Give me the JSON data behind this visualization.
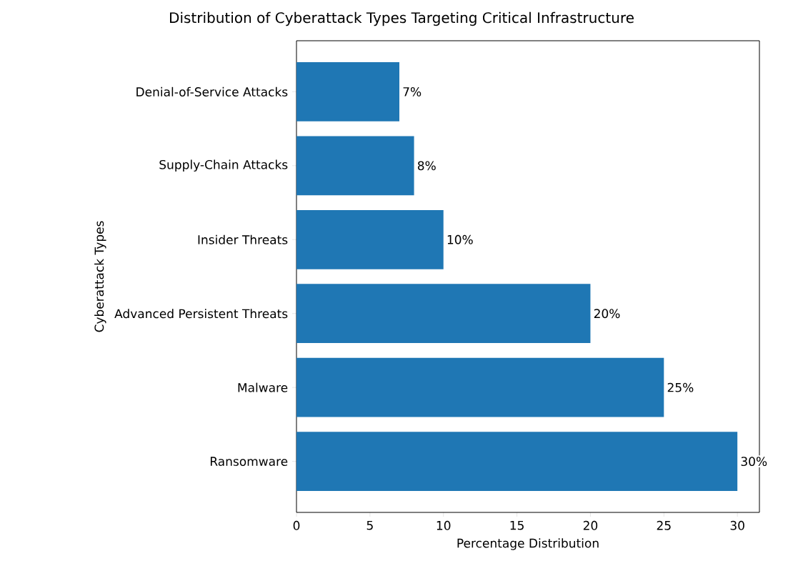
{
  "chart_data": {
    "type": "bar",
    "orientation": "horizontal",
    "title": "Distribution of Cyberattack Types Targeting Critical Infrastructure",
    "xlabel": "Percentage Distribution",
    "ylabel": "Cyberattack Types",
    "categories": [
      "Denial-of-Service Attacks",
      "Supply-Chain Attacks",
      "Insider Threats",
      "Advanced Persistent Threats",
      "Malware",
      "Ransomware"
    ],
    "values": [
      7,
      8,
      10,
      20,
      25,
      30
    ],
    "value_labels": [
      "7%",
      "8%",
      "10%",
      "20%",
      "25%",
      "30%"
    ],
    "color": "#1f77b4",
    "xlim": [
      0,
      31.5
    ],
    "xticks": [
      0,
      5,
      10,
      15,
      20,
      25,
      30
    ],
    "grid": false
  }
}
